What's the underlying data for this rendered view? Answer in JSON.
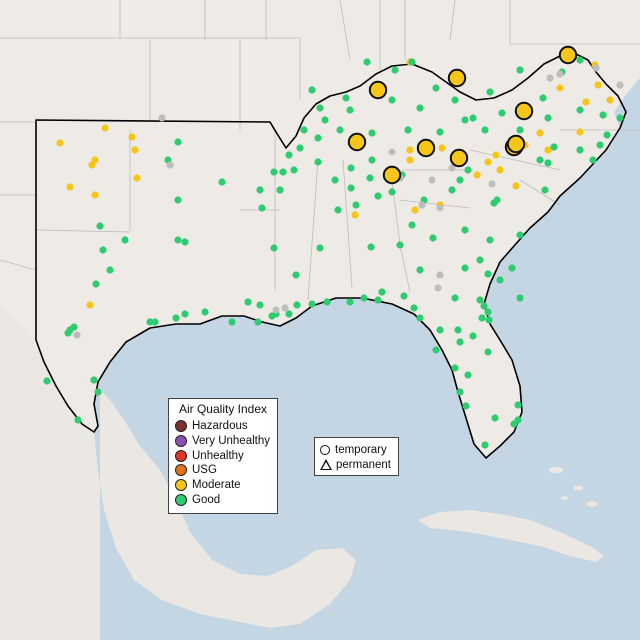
{
  "legend": {
    "title": "Air Quality Index",
    "categories": [
      {
        "label": "Hazardous",
        "color": "#7e2f2f"
      },
      {
        "label": "Very Unhealthy",
        "color": "#8f4fb0"
      },
      {
        "label": "Unhealthy",
        "color": "#e0332a"
      },
      {
        "label": "USG",
        "color": "#e2731a"
      },
      {
        "label": "Moderate",
        "color": "#f5c518"
      },
      {
        "label": "Good",
        "color": "#2ecc71"
      }
    ],
    "no_data_color": "#bdbdbd"
  },
  "monitor_types": {
    "temporary": "temporary",
    "permanent": "permanent"
  },
  "colors": {
    "land": "#eeeae5",
    "water": "#c4d6e4",
    "state_border": "#bdbdbd",
    "highlight_border": "#000000"
  }
}
